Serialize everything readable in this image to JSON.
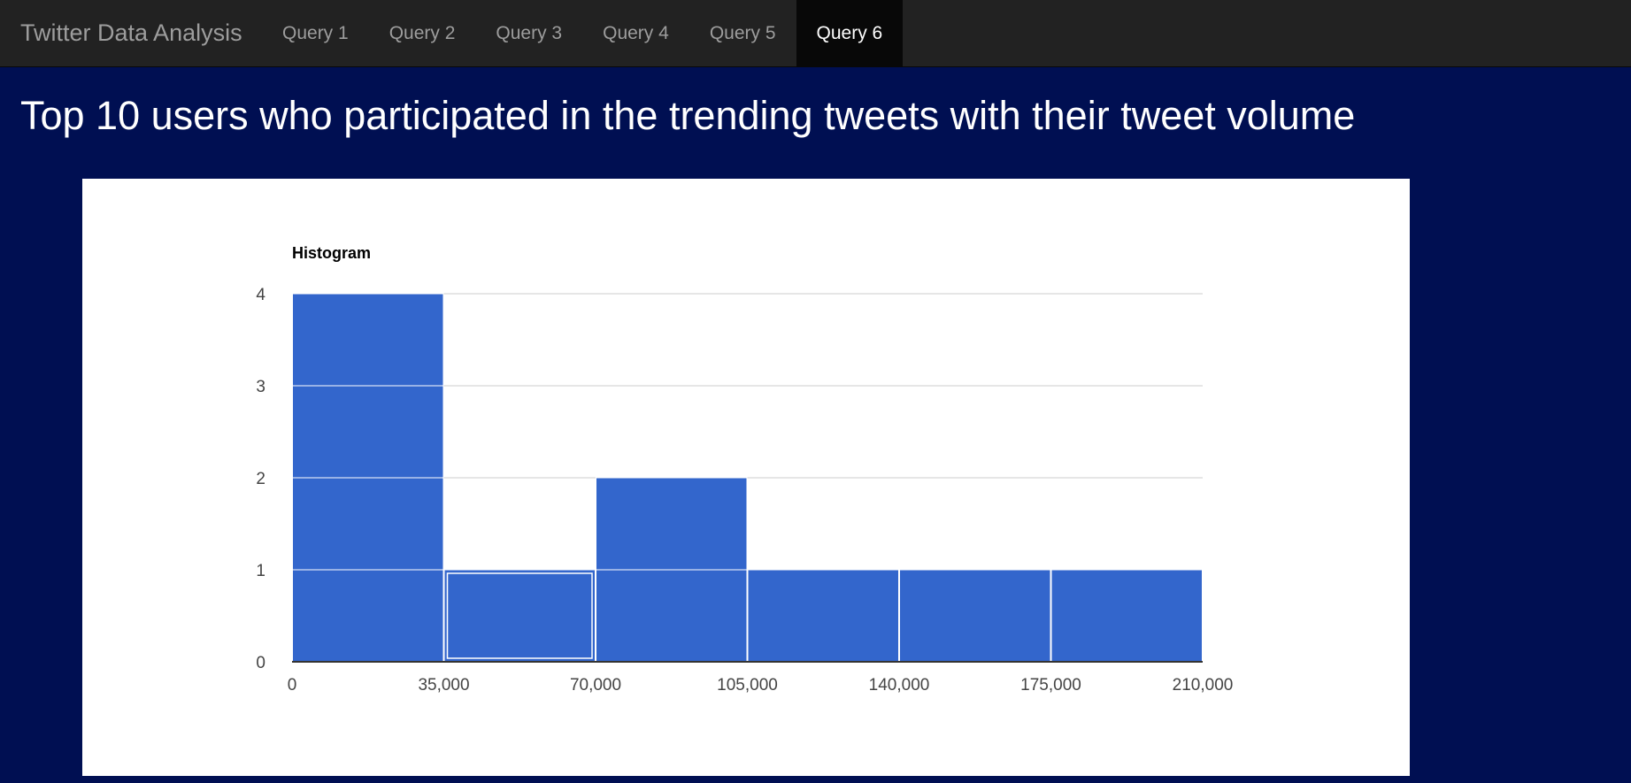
{
  "navbar": {
    "brand": "Twitter Data Analysis",
    "items": [
      {
        "label": "Query 1",
        "active": false
      },
      {
        "label": "Query 2",
        "active": false
      },
      {
        "label": "Query 3",
        "active": false
      },
      {
        "label": "Query 4",
        "active": false
      },
      {
        "label": "Query 5",
        "active": false
      },
      {
        "label": "Query 6",
        "active": true
      }
    ]
  },
  "page": {
    "heading": "Top 10 users who participated in the trending tweets with their tweet volume"
  },
  "colors": {
    "bar": "#3366cc",
    "background": "#000f52",
    "navbar": "#222222"
  },
  "chart_data": {
    "type": "bar",
    "title": "Histogram",
    "bins": [
      {
        "start": 0,
        "end": 35000,
        "count": 4
      },
      {
        "start": 35000,
        "end": 70000,
        "count": 1
      },
      {
        "start": 70000,
        "end": 105000,
        "count": 2
      },
      {
        "start": 105000,
        "end": 140000,
        "count": 1
      },
      {
        "start": 140000,
        "end": 175000,
        "count": 1
      },
      {
        "start": 175000,
        "end": 210000,
        "count": 1
      }
    ],
    "selected_bin": 1,
    "xlim": [
      0,
      210000
    ],
    "ylim": [
      0,
      4
    ],
    "x_ticks": [
      "0",
      "35,000",
      "70,000",
      "105,000",
      "140,000",
      "175,000",
      "210,000"
    ],
    "x_tick_values": [
      0,
      35000,
      70000,
      105000,
      140000,
      175000,
      210000
    ],
    "y_ticks": [
      "0",
      "1",
      "2",
      "3",
      "4"
    ],
    "y_tick_values": [
      0,
      1,
      2,
      3,
      4
    ],
    "grid": true,
    "legend": "none"
  }
}
